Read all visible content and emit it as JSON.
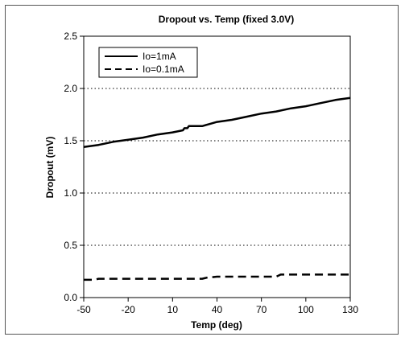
{
  "chart_data": {
    "type": "line",
    "title": "Dropout vs. Temp (fixed 3.0V)",
    "xlabel": "Temp (deg)",
    "ylabel": "Dropout (mV)",
    "xlim": [
      -50,
      130
    ],
    "ylim": [
      0.0,
      2.5
    ],
    "xticks": [
      -50,
      -20,
      10,
      40,
      70,
      100,
      130
    ],
    "yticks": [
      "0.0",
      "0.5",
      "1.0",
      "1.5",
      "2.0",
      "2.5"
    ],
    "grid": "horizontal-dotted",
    "legend_position": "top-left",
    "series": [
      {
        "name": "Io=1mA",
        "line_style": "solid",
        "color": "#000000",
        "x": [
          -50,
          -40,
          -30,
          -20,
          -10,
          0,
          10,
          17,
          18,
          20,
          21,
          30,
          35,
          40,
          50,
          60,
          70,
          80,
          90,
          100,
          110,
          120,
          130
        ],
        "y": [
          1.44,
          1.46,
          1.49,
          1.51,
          1.53,
          1.56,
          1.58,
          1.6,
          1.62,
          1.62,
          1.64,
          1.64,
          1.66,
          1.68,
          1.7,
          1.73,
          1.76,
          1.78,
          1.81,
          1.83,
          1.86,
          1.89,
          1.91
        ]
      },
      {
        "name": "Io=0.1mA",
        "line_style": "dashed",
        "color": "#000000",
        "x": [
          -50,
          -43,
          -40,
          -20,
          0,
          20,
          30,
          33,
          40,
          60,
          75,
          80,
          83,
          100,
          130
        ],
        "y": [
          0.17,
          0.17,
          0.18,
          0.18,
          0.18,
          0.18,
          0.18,
          0.19,
          0.2,
          0.2,
          0.2,
          0.2,
          0.22,
          0.22,
          0.22
        ]
      }
    ]
  }
}
